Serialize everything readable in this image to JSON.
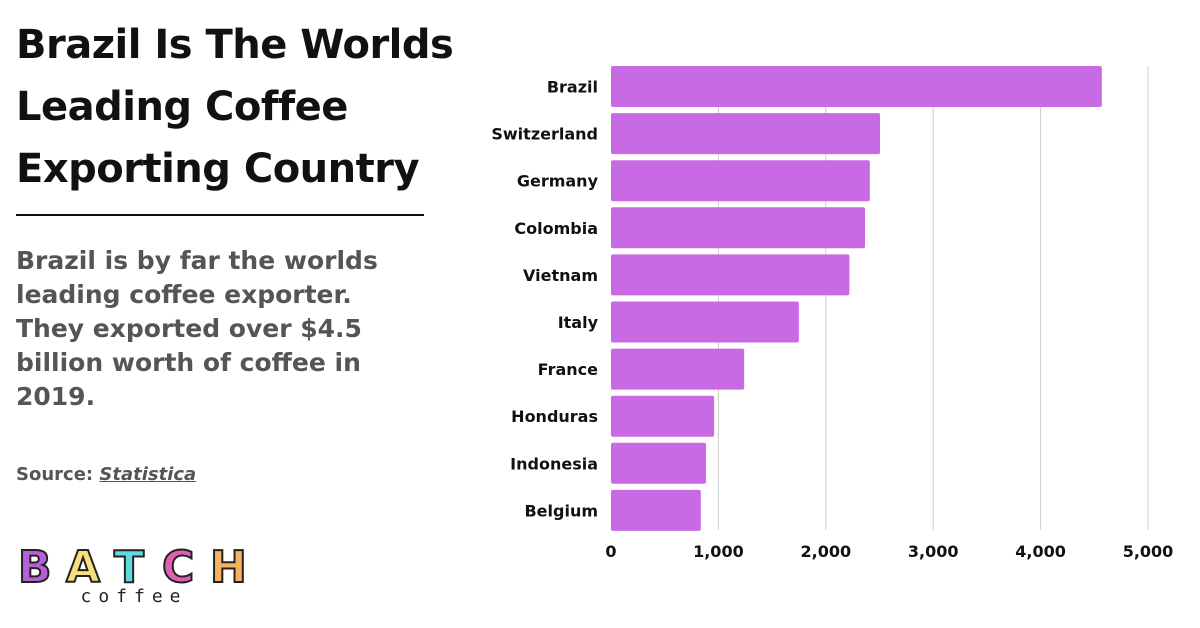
{
  "title": "Brazil Is The Worlds Leading Coffee Exporting Country",
  "description": "Brazil is by far the worlds leading coffee exporter. They exported over $4.5 billion worth of coffee in 2019.",
  "source": {
    "label": "Source:",
    "link": "Statistica"
  },
  "logo": {
    "text": "BATCH",
    "subtext": "coffee",
    "colors": [
      "#b65fd9",
      "#f5e07a",
      "#5fdbe0",
      "#e05fb0",
      "#f5b35f"
    ]
  },
  "colors": {
    "bar": "#c86ae3",
    "grid": "#cccccc"
  },
  "chart_data": {
    "type": "bar",
    "orientation": "horizontal",
    "categories": [
      "Brazil",
      "Switzerland",
      "Germany",
      "Colombia",
      "Vietnam",
      "Italy",
      "France",
      "Honduras",
      "Indonesia",
      "Belgium"
    ],
    "values": [
      4570,
      2505,
      2410,
      2365,
      2220,
      1749,
      1240,
      960,
      885,
      836
    ],
    "xlim": [
      0,
      5000
    ],
    "xticks": [
      0,
      1000,
      2000,
      3000,
      4000,
      5000
    ],
    "xtick_labels": [
      "0",
      "1,000",
      "2,000",
      "3,000",
      "4,000",
      "5,000"
    ],
    "grid": true
  }
}
